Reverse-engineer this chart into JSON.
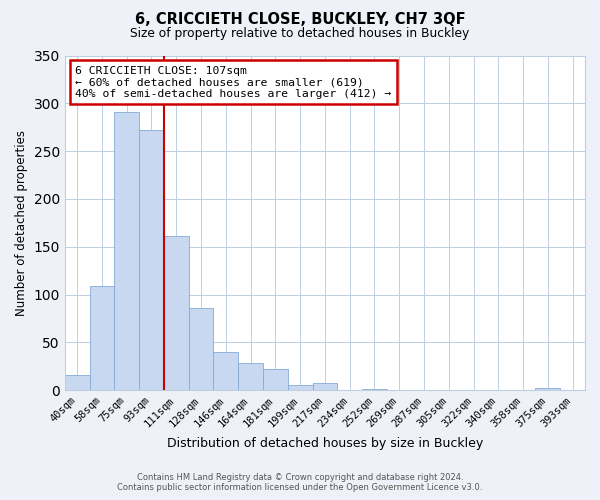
{
  "title": "6, CRICCIETH CLOSE, BUCKLEY, CH7 3QF",
  "subtitle": "Size of property relative to detached houses in Buckley",
  "xlabel": "Distribution of detached houses by size in Buckley",
  "ylabel": "Number of detached properties",
  "bar_labels": [
    "40sqm",
    "58sqm",
    "75sqm",
    "93sqm",
    "111sqm",
    "128sqm",
    "146sqm",
    "164sqm",
    "181sqm",
    "199sqm",
    "217sqm",
    "234sqm",
    "252sqm",
    "269sqm",
    "287sqm",
    "305sqm",
    "322sqm",
    "340sqm",
    "358sqm",
    "375sqm",
    "393sqm"
  ],
  "bar_values": [
    16,
    109,
    291,
    272,
    161,
    86,
    40,
    28,
    22,
    5,
    8,
    0,
    1,
    0,
    0,
    0,
    0,
    0,
    0,
    2,
    0
  ],
  "bar_color": "#c8d8f0",
  "bar_edge_color": "#85aad4",
  "highlight_color": "#cc0000",
  "vline_x": 3.5,
  "annotation_line1": "6 CRICCIETH CLOSE: 107sqm",
  "annotation_line2": "← 60% of detached houses are smaller (619)",
  "annotation_line3": "40% of semi-detached houses are larger (412) →",
  "annotation_box_color": "white",
  "annotation_border_color": "#cc0000",
  "ylim": [
    0,
    350
  ],
  "yticks": [
    0,
    50,
    100,
    150,
    200,
    250,
    300,
    350
  ],
  "footer_line1": "Contains HM Land Registry data © Crown copyright and database right 2024.",
  "footer_line2": "Contains public sector information licensed under the Open Government Licence v3.0.",
  "bg_color": "#eef2f8",
  "plot_bg_color": "#ffffff",
  "grid_color": "#c0cfe0"
}
